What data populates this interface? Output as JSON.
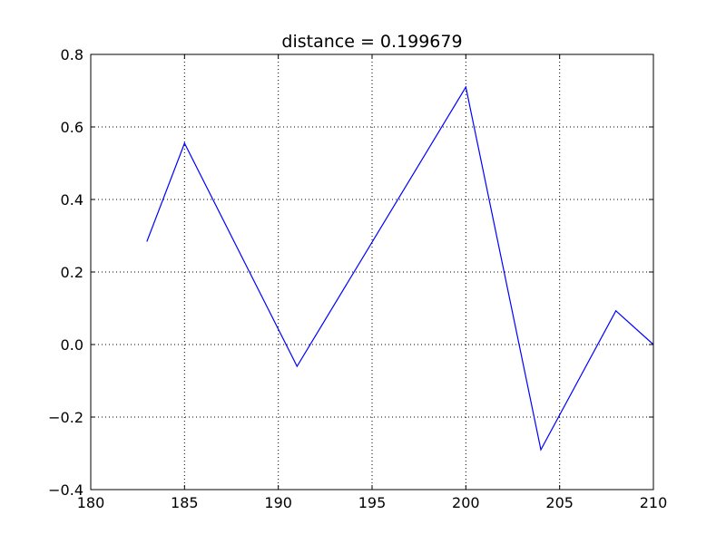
{
  "chart_data": {
    "type": "line",
    "title": "distance = 0.199679",
    "xlabel": "",
    "ylabel": "",
    "xlim": [
      180,
      210
    ],
    "ylim": [
      -0.4,
      0.8
    ],
    "x_ticks": [
      "180",
      "185",
      "190",
      "195",
      "200",
      "205",
      "210"
    ],
    "y_ticks": [
      "−0.4",
      "−0.2",
      "0.0",
      "0.2",
      "0.4",
      "0.6",
      "0.8"
    ],
    "grid": true,
    "series": [
      {
        "color": "#0000ff",
        "x": [
          183,
          185,
          191,
          200,
          204,
          208,
          210
        ],
        "y": [
          0.285,
          0.555,
          -0.06,
          0.71,
          -0.29,
          0.093,
          0.0
        ]
      }
    ]
  }
}
